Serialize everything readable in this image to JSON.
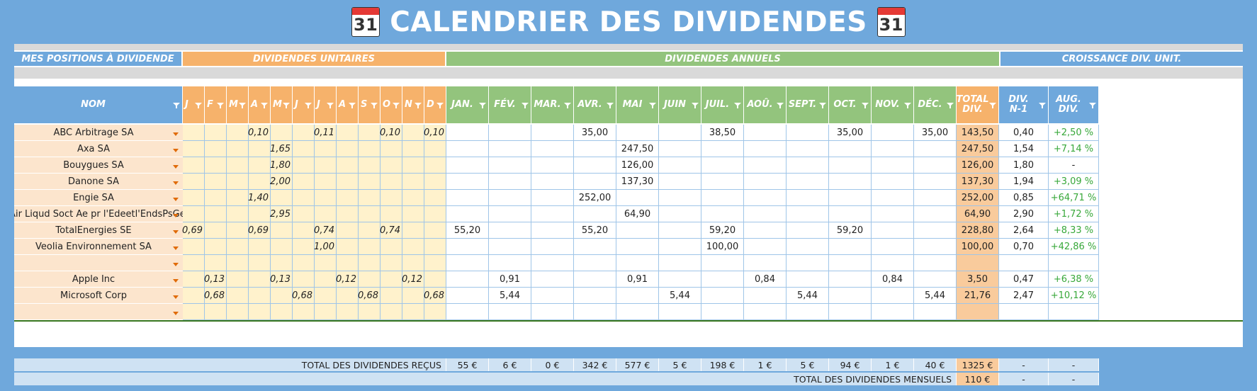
{
  "title": "CALENDRIER DES DIVIDENDES",
  "calendar_icon_number": "31",
  "sections": {
    "positions": "MES POSITIONS À DIVIDENDE",
    "unit": "DIVIDENDES UNITAIRES",
    "annual": "DIVIDENDES ANNUELS",
    "growth": "CROISSANCE DIV. UNIT."
  },
  "headers": {
    "name": "NOM",
    "unit_months": [
      "J",
      "F",
      "M",
      "A",
      "M",
      "J",
      "J",
      "A",
      "S",
      "O",
      "N",
      "D"
    ],
    "annual_months": [
      "JAN.",
      "FÉV.",
      "MAR.",
      "AVR.",
      "MAI",
      "JUIN",
      "JUIL.",
      "AOÛ.",
      "SEPT.",
      "OCT.",
      "NOV.",
      "DÉC."
    ],
    "total": "TOTAL\nDIV.",
    "prev": "DIV.\nN-1",
    "aug": "AUG.\nDIV."
  },
  "rows": [
    {
      "name": "ABC Arbitrage SA",
      "unit": [
        "",
        "",
        "",
        "0,10",
        "",
        "",
        "0,11",
        "",
        "",
        "0,10",
        "",
        "0,10"
      ],
      "annual": [
        "",
        "",
        "",
        "35,00",
        "",
        "",
        "38,50",
        "",
        "",
        "35,00",
        "",
        "35,00"
      ],
      "total": "143,50",
      "prev": "0,40",
      "aug": "+2,50 %"
    },
    {
      "name": "Axa SA",
      "unit": [
        "",
        "",
        "",
        "",
        "1,65",
        "",
        "",
        "",
        "",
        "",
        "",
        ""
      ],
      "annual": [
        "",
        "",
        "",
        "",
        "247,50",
        "",
        "",
        "",
        "",
        "",
        "",
        ""
      ],
      "total": "247,50",
      "prev": "1,54",
      "aug": "+7,14 %"
    },
    {
      "name": "Bouygues SA",
      "unit": [
        "",
        "",
        "",
        "",
        "1,80",
        "",
        "",
        "",
        "",
        "",
        "",
        ""
      ],
      "annual": [
        "",
        "",
        "",
        "",
        "126,00",
        "",
        "",
        "",
        "",
        "",
        "",
        ""
      ],
      "total": "126,00",
      "prev": "1,80",
      "aug": "-"
    },
    {
      "name": "Danone SA",
      "unit": [
        "",
        "",
        "",
        "",
        "2,00",
        "",
        "",
        "",
        "",
        "",
        "",
        ""
      ],
      "annual": [
        "",
        "",
        "",
        "",
        "137,30",
        "",
        "",
        "",
        "",
        "",
        "",
        ""
      ],
      "total": "137,30",
      "prev": "1,94",
      "aug": "+3,09 %"
    },
    {
      "name": "Engie SA",
      "unit": [
        "",
        "",
        "",
        "1,40",
        "",
        "",
        "",
        "",
        "",
        "",
        "",
        ""
      ],
      "annual": [
        "",
        "",
        "",
        "252,00",
        "",
        "",
        "",
        "",
        "",
        "",
        "",
        ""
      ],
      "total": "252,00",
      "prev": "0,85",
      "aug": "+64,71 %"
    },
    {
      "name": "L'Air Liqud Soct Ae pr l'Edeetl'EndsPsGe",
      "unit": [
        "",
        "",
        "",
        "",
        "2,95",
        "",
        "",
        "",
        "",
        "",
        "",
        ""
      ],
      "annual": [
        "",
        "",
        "",
        "",
        "64,90",
        "",
        "",
        "",
        "",
        "",
        "",
        ""
      ],
      "total": "64,90",
      "prev": "2,90",
      "aug": "+1,72 %"
    },
    {
      "name": "TotalEnergies SE",
      "unit": [
        "0,69",
        "",
        "",
        "0,69",
        "",
        "",
        "0,74",
        "",
        "",
        "0,74",
        "",
        ""
      ],
      "annual": [
        "55,20",
        "",
        "",
        "55,20",
        "",
        "",
        "59,20",
        "",
        "",
        "59,20",
        "",
        ""
      ],
      "total": "228,80",
      "prev": "2,64",
      "aug": "+8,33 %"
    },
    {
      "name": "Veolia Environnement SA",
      "unit": [
        "",
        "",
        "",
        "",
        "",
        "",
        "1,00",
        "",
        "",
        "",
        "",
        ""
      ],
      "annual": [
        "",
        "",
        "",
        "",
        "",
        "",
        "100,00",
        "",
        "",
        "",
        "",
        ""
      ],
      "total": "100,00",
      "prev": "0,70",
      "aug": "+42,86 %"
    },
    {
      "name": "",
      "unit": [
        "",
        "",
        "",
        "",
        "",
        "",
        "",
        "",
        "",
        "",
        "",
        ""
      ],
      "annual": [
        "",
        "",
        "",
        "",
        "",
        "",
        "",
        "",
        "",
        "",
        "",
        ""
      ],
      "total": "",
      "prev": "",
      "aug": ""
    },
    {
      "name": "Apple Inc",
      "unit": [
        "",
        "0,13",
        "",
        "",
        "0,13",
        "",
        "",
        "0,12",
        "",
        "",
        "0,12",
        ""
      ],
      "annual": [
        "",
        "0,91",
        "",
        "",
        "0,91",
        "",
        "",
        "0,84",
        "",
        "",
        "0,84",
        ""
      ],
      "total": "3,50",
      "prev": "0,47",
      "aug": "+6,38 %"
    },
    {
      "name": "Microsoft Corp",
      "unit": [
        "",
        "0,68",
        "",
        "",
        "",
        "0,68",
        "",
        "",
        "0,68",
        "",
        "",
        "0,68"
      ],
      "annual": [
        "",
        "5,44",
        "",
        "",
        "",
        "5,44",
        "",
        "",
        "5,44",
        "",
        "",
        "5,44"
      ],
      "total": "21,76",
      "prev": "2,47",
      "aug": "+10,12 %"
    },
    {
      "name": "",
      "unit": [
        "",
        "",
        "",
        "",
        "",
        "",
        "",
        "",
        "",
        "",
        "",
        ""
      ],
      "annual": [
        "",
        "",
        "",
        "",
        "",
        "",
        "",
        "",
        "",
        "",
        "",
        ""
      ],
      "total": "",
      "prev": "",
      "aug": ""
    }
  ],
  "totals": {
    "received_label": "TOTAL DES DIVIDENDES REÇUS",
    "monthly": [
      "55 €",
      "6 €",
      "0 €",
      "342 €",
      "577 €",
      "5 €",
      "198 €",
      "1 €",
      "5 €",
      "94 €",
      "1 €",
      "40 €"
    ],
    "grand_total": "1325 €",
    "prev": "-",
    "aug": "-",
    "monthly_label": "TOTAL DES DIVIDENDES MENSUELS",
    "monthly_avg": "110 €",
    "prev2": "-",
    "aug2": "-"
  },
  "colors": {
    "background": "#6fa8dc",
    "blue_header": "#6fa8dc",
    "orange_header": "#f6b26b",
    "green_header": "#93c47d",
    "unit_cell": "#fff2cc",
    "name_cell": "#fce5cd",
    "total_cell": "#f9cb9c",
    "positive": "#38a83a"
  }
}
